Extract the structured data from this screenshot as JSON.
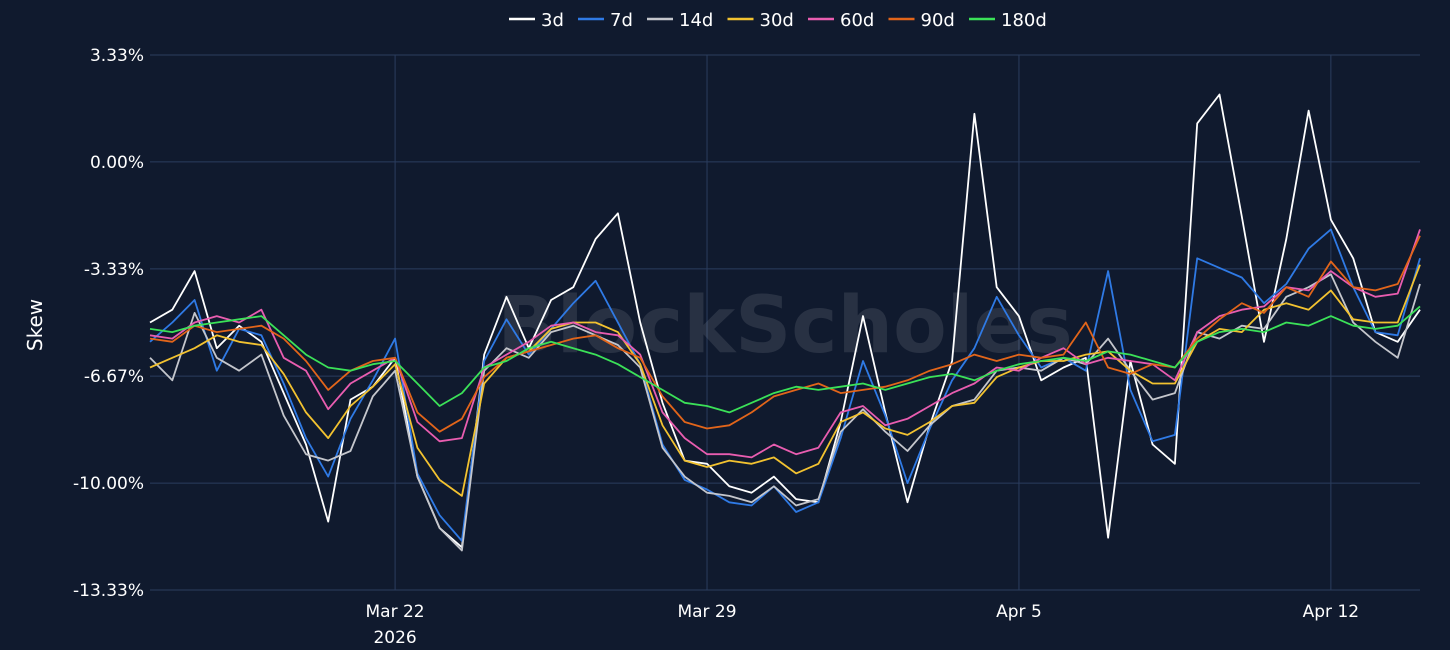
{
  "chart_data": {
    "type": "line",
    "title": "",
    "xlabel": "",
    "ylabel": "Skew",
    "watermark": "BlockScholes",
    "x_range": [
      "2026-03-16T12:00",
      "2026-04-14T00:00"
    ],
    "ylim": [
      -13.33,
      3.33
    ],
    "y_ticks": [
      {
        "value": 3.33,
        "label": "3.33%"
      },
      {
        "value": 0.0,
        "label": "0.00%"
      },
      {
        "value": -3.33,
        "label": "-3.33%"
      },
      {
        "value": -6.67,
        "label": "-6.67%"
      },
      {
        "value": -10.0,
        "label": "-10.00%"
      },
      {
        "value": -13.33,
        "label": "-13.33%"
      }
    ],
    "x_ticks": [
      {
        "date": "2026-03-22",
        "label": "Mar 22",
        "sublabel": "2026"
      },
      {
        "date": "2026-03-29",
        "label": "Mar 29",
        "sublabel": ""
      },
      {
        "date": "2026-04-05",
        "label": "Apr 5",
        "sublabel": ""
      },
      {
        "date": "2026-04-12",
        "label": "Apr 12",
        "sublabel": ""
      }
    ],
    "grid": true,
    "legend_position": "top-center",
    "x": [
      "2026-03-16T12:00",
      "2026-03-17T00:00",
      "2026-03-17T12:00",
      "2026-03-18T00:00",
      "2026-03-18T12:00",
      "2026-03-19T00:00",
      "2026-03-19T12:00",
      "2026-03-20T00:00",
      "2026-03-20T12:00",
      "2026-03-21T00:00",
      "2026-03-21T12:00",
      "2026-03-22T00:00",
      "2026-03-22T12:00",
      "2026-03-23T00:00",
      "2026-03-23T12:00",
      "2026-03-24T00:00",
      "2026-03-24T12:00",
      "2026-03-25T00:00",
      "2026-03-25T12:00",
      "2026-03-26T00:00",
      "2026-03-26T12:00",
      "2026-03-27T00:00",
      "2026-03-27T12:00",
      "2026-03-28T00:00",
      "2026-03-28T12:00",
      "2026-03-29T00:00",
      "2026-03-29T12:00",
      "2026-03-30T00:00",
      "2026-03-30T12:00",
      "2026-03-31T00:00",
      "2026-03-31T12:00",
      "2026-04-01T00:00",
      "2026-04-01T12:00",
      "2026-04-02T00:00",
      "2026-04-02T12:00",
      "2026-04-03T00:00",
      "2026-04-03T12:00",
      "2026-04-04T00:00",
      "2026-04-04T12:00",
      "2026-04-05T00:00",
      "2026-04-05T12:00",
      "2026-04-06T00:00",
      "2026-04-06T12:00",
      "2026-04-07T00:00",
      "2026-04-07T12:00",
      "2026-04-08T00:00",
      "2026-04-08T12:00",
      "2026-04-09T00:00",
      "2026-04-09T12:00",
      "2026-04-10T00:00",
      "2026-04-10T12:00",
      "2026-04-11T00:00",
      "2026-04-11T12:00",
      "2026-04-12T00:00",
      "2026-04-12T12:00",
      "2026-04-13T00:00",
      "2026-04-13T12:00",
      "2026-04-14T00:00"
    ],
    "series": [
      {
        "name": "3d",
        "color": "#ffffff",
        "values": [
          -5.0,
          -4.6,
          -3.4,
          -5.8,
          -5.1,
          -5.6,
          -7.2,
          -8.8,
          -11.2,
          -7.4,
          -7.0,
          -6.1,
          -9.8,
          -11.4,
          -12.0,
          -6.0,
          -4.2,
          -5.8,
          -4.3,
          -3.9,
          -2.4,
          -1.6,
          -5.0,
          -7.5,
          -9.3,
          -9.4,
          -10.1,
          -10.3,
          -9.8,
          -10.5,
          -10.6,
          -8.1,
          -4.8,
          -7.8,
          -10.6,
          -8.2,
          -6.2,
          1.5,
          -3.9,
          -4.8,
          -6.8,
          -6.4,
          -6.1,
          -11.7,
          -6.2,
          -8.8,
          -9.4,
          1.2,
          2.1,
          -1.7,
          -5.6,
          -2.4,
          1.6,
          -1.8,
          -3.0,
          -5.3,
          -5.6,
          -4.6
        ]
      },
      {
        "name": "7d",
        "color": "#2f7ae5",
        "values": [
          -5.6,
          -5.0,
          -4.3,
          -6.5,
          -5.2,
          -5.4,
          -6.9,
          -8.6,
          -9.8,
          -8.0,
          -6.8,
          -5.5,
          -9.7,
          -11.0,
          -11.8,
          -6.2,
          -4.9,
          -6.0,
          -5.2,
          -4.4,
          -3.7,
          -5.0,
          -6.3,
          -8.8,
          -9.9,
          -10.2,
          -10.6,
          -10.7,
          -10.1,
          -10.9,
          -10.6,
          -8.6,
          -6.2,
          -7.9,
          -10.0,
          -8.3,
          -6.8,
          -5.8,
          -4.2,
          -5.4,
          -6.4,
          -6.1,
          -6.5,
          -3.4,
          -7.1,
          -8.7,
          -8.5,
          -3.0,
          -3.3,
          -3.6,
          -4.4,
          -3.8,
          -2.7,
          -2.1,
          -3.9,
          -5.3,
          -5.4,
          -3.0
        ]
      },
      {
        "name": "14d",
        "color": "#c4c6cc",
        "values": [
          -6.1,
          -6.8,
          -4.7,
          -6.1,
          -6.5,
          -6.0,
          -7.9,
          -9.1,
          -9.3,
          -9.0,
          -7.3,
          -6.5,
          -9.8,
          -11.4,
          -12.1,
          -6.5,
          -5.8,
          -6.1,
          -5.3,
          -5.1,
          -5.4,
          -5.7,
          -6.4,
          -8.9,
          -9.8,
          -10.3,
          -10.4,
          -10.6,
          -10.1,
          -10.7,
          -10.5,
          -8.4,
          -7.7,
          -8.4,
          -9.0,
          -8.2,
          -7.6,
          -7.4,
          -6.5,
          -6.4,
          -6.5,
          -6.1,
          -6.3,
          -5.5,
          -6.5,
          -7.4,
          -7.2,
          -5.3,
          -5.5,
          -5.1,
          -5.2,
          -4.2,
          -3.9,
          -3.5,
          -5.0,
          -5.6,
          -6.1,
          -3.8
        ]
      },
      {
        "name": "30d",
        "color": "#f2c230",
        "values": [
          -6.4,
          -6.1,
          -5.8,
          -5.4,
          -5.6,
          -5.7,
          -6.6,
          -7.8,
          -8.6,
          -7.6,
          -7.0,
          -6.3,
          -8.9,
          -9.9,
          -10.4,
          -6.9,
          -6.1,
          -5.9,
          -5.2,
          -5.0,
          -5.0,
          -5.3,
          -6.3,
          -8.2,
          -9.3,
          -9.5,
          -9.3,
          -9.4,
          -9.2,
          -9.7,
          -9.4,
          -8.1,
          -7.8,
          -8.3,
          -8.5,
          -8.1,
          -7.6,
          -7.5,
          -6.7,
          -6.4,
          -6.2,
          -6.2,
          -6.0,
          -5.9,
          -6.5,
          -6.9,
          -6.9,
          -5.6,
          -5.2,
          -5.3,
          -4.6,
          -4.4,
          -4.6,
          -4.0,
          -4.9,
          -5.0,
          -5.0,
          -3.2
        ]
      },
      {
        "name": "60d",
        "color": "#e95db0",
        "values": [
          -5.4,
          -5.5,
          -5.0,
          -4.8,
          -5.0,
          -4.6,
          -6.1,
          -6.5,
          -7.7,
          -6.9,
          -6.5,
          -6.1,
          -8.1,
          -8.7,
          -8.6,
          -6.4,
          -6.0,
          -5.6,
          -5.1,
          -5.0,
          -5.3,
          -5.4,
          -6.0,
          -7.8,
          -8.6,
          -9.1,
          -9.1,
          -9.2,
          -8.8,
          -9.1,
          -8.9,
          -7.8,
          -7.6,
          -8.2,
          -8.0,
          -7.6,
          -7.2,
          -6.9,
          -6.4,
          -6.5,
          -6.1,
          -5.8,
          -6.3,
          -6.1,
          -6.2,
          -6.3,
          -6.8,
          -5.3,
          -4.8,
          -4.6,
          -4.5,
          -3.9,
          -4.0,
          -3.4,
          -3.9,
          -4.2,
          -4.1,
          -2.1
        ]
      },
      {
        "name": "90d",
        "color": "#e2651a",
        "values": [
          -5.5,
          -5.6,
          -5.1,
          -5.3,
          -5.2,
          -5.1,
          -5.5,
          -6.2,
          -7.1,
          -6.5,
          -6.2,
          -6.1,
          -7.8,
          -8.4,
          -8.0,
          -6.7,
          -6.1,
          -5.9,
          -5.7,
          -5.5,
          -5.4,
          -5.8,
          -6.1,
          -7.3,
          -8.1,
          -8.3,
          -8.2,
          -7.8,
          -7.3,
          -7.1,
          -6.9,
          -7.2,
          -7.1,
          -7.0,
          -6.8,
          -6.5,
          -6.3,
          -6.0,
          -6.2,
          -6.0,
          -6.1,
          -6.0,
          -5.0,
          -6.4,
          -6.6,
          -6.3,
          -6.4,
          -5.5,
          -4.9,
          -4.4,
          -4.7,
          -3.9,
          -4.2,
          -3.1,
          -3.9,
          -4.0,
          -3.8,
          -2.3
        ]
      },
      {
        "name": "180d",
        "color": "#3be158",
        "values": [
          -5.2,
          -5.3,
          -5.1,
          -5.0,
          -4.9,
          -4.8,
          -5.4,
          -6.0,
          -6.4,
          -6.5,
          -6.3,
          -6.2,
          -6.9,
          -7.6,
          -7.2,
          -6.4,
          -6.2,
          -5.8,
          -5.6,
          -5.8,
          -6.0,
          -6.3,
          -6.7,
          -7.1,
          -7.5,
          -7.6,
          -7.8,
          -7.5,
          -7.2,
          -7.0,
          -7.1,
          -7.0,
          -6.9,
          -7.1,
          -6.9,
          -6.7,
          -6.6,
          -6.8,
          -6.5,
          -6.3,
          -6.2,
          -6.1,
          -6.2,
          -5.9,
          -6.0,
          -6.2,
          -6.4,
          -5.6,
          -5.3,
          -5.2,
          -5.3,
          -5.0,
          -5.1,
          -4.8,
          -5.1,
          -5.2,
          -5.1,
          -4.5
        ]
      }
    ]
  }
}
